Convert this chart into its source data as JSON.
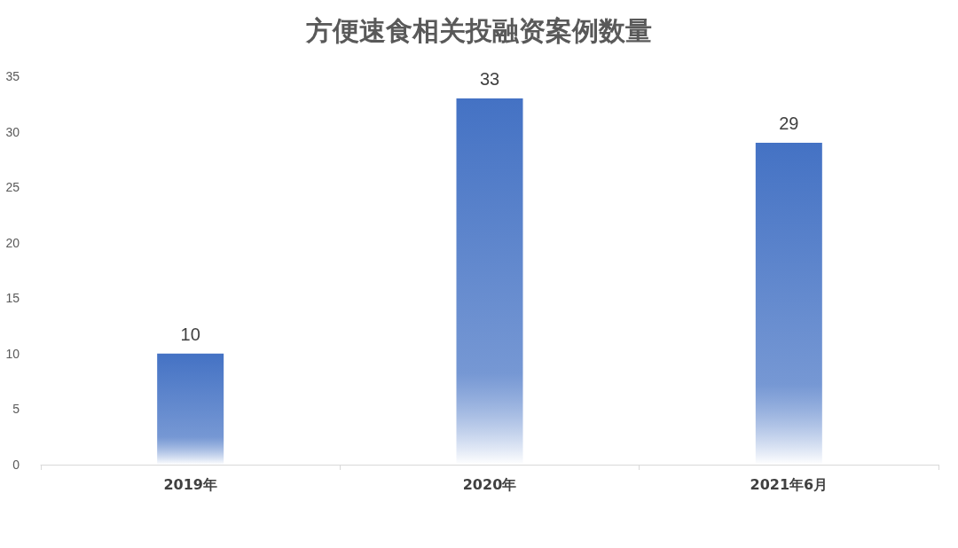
{
  "chart_data": {
    "type": "bar",
    "title": "方便速食相关投融资案例数量",
    "categories": [
      "2019年",
      "2020年",
      "2021年6月"
    ],
    "values": [
      10,
      33,
      29
    ],
    "color": "#4472c4",
    "ylim": [
      0,
      35
    ],
    "yticks": [
      0,
      5,
      10,
      15,
      20,
      25,
      30,
      35
    ],
    "grid": false,
    "data_labels": true
  }
}
